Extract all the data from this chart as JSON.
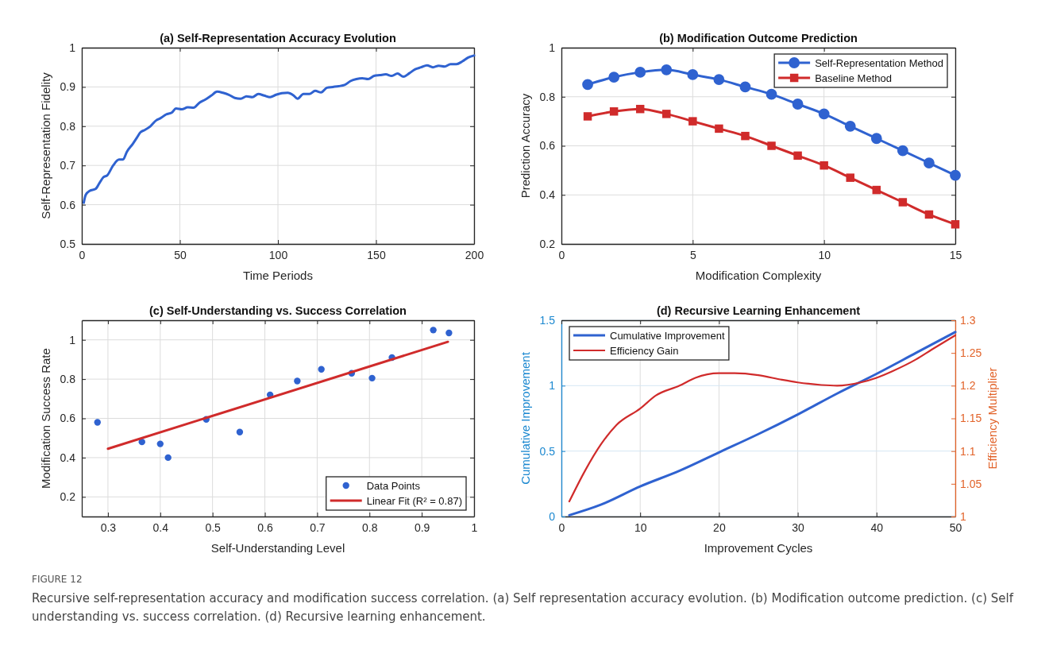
{
  "chart_data": [
    {
      "type": "line",
      "title": "(a) Self-Representation Accuracy Evolution",
      "xlabel": "Time Periods",
      "ylabel": "Self-Representation Fidelity",
      "xlim": [
        0,
        200
      ],
      "xticks": [
        0,
        50,
        100,
        150,
        200
      ],
      "ylim": [
        0.5,
        1
      ],
      "yticks": [
        0.5,
        0.6,
        0.7,
        0.8,
        0.9,
        1
      ],
      "grid": true,
      "legend": false,
      "x": [
        1,
        2,
        4,
        7,
        9,
        11,
        13,
        16,
        19,
        21,
        23,
        26,
        28,
        30,
        32,
        35,
        38,
        40,
        43,
        46,
        48,
        51,
        54,
        57,
        60,
        63,
        66,
        69,
        72,
        75,
        78,
        81,
        84,
        87,
        90,
        93,
        96,
        99,
        102,
        105,
        108,
        110,
        113,
        116,
        119,
        122,
        125,
        128,
        131,
        134,
        137,
        140,
        143,
        146,
        149,
        152,
        155,
        158,
        161,
        164,
        167,
        170,
        173,
        176,
        179,
        182,
        185,
        188,
        191,
        194,
        197,
        200
      ],
      "series": [
        {
          "color": "#2f62d0",
          "values": [
            0.605,
            0.625,
            0.635,
            0.64,
            0.655,
            0.67,
            0.675,
            0.7,
            0.715,
            0.715,
            0.735,
            0.755,
            0.77,
            0.785,
            0.79,
            0.8,
            0.815,
            0.82,
            0.83,
            0.835,
            0.845,
            0.843,
            0.848,
            0.847,
            0.86,
            0.868,
            0.878,
            0.888,
            0.885,
            0.88,
            0.872,
            0.87,
            0.876,
            0.874,
            0.882,
            0.878,
            0.874,
            0.88,
            0.884,
            0.885,
            0.878,
            0.87,
            0.882,
            0.882,
            0.89,
            0.886,
            0.898,
            0.9,
            0.902,
            0.905,
            0.915,
            0.92,
            0.922,
            0.92,
            0.928,
            0.93,
            0.932,
            0.928,
            0.934,
            0.926,
            0.935,
            0.945,
            0.95,
            0.955,
            0.95,
            0.954,
            0.952,
            0.958,
            0.958,
            0.965,
            0.975,
            0.98
          ]
        }
      ],
      "annotations": [
        "FIGURE 12",
        "Recursive self-representation accuracy and modification success correlation. (a) Self representation accuracy evolution. (b) Modification outcome prediction. (c) Self understanding vs. success correlation. (d) Recursive learning enhancement."
      ]
    },
    {
      "type": "line",
      "title": "(b) Modification Outcome Prediction",
      "xlabel": "Modification Complexity",
      "ylabel": "Prediction Accuracy",
      "xlim": [
        0,
        15
      ],
      "xticks": [
        0,
        5,
        10,
        15
      ],
      "ylim": [
        0.2,
        1
      ],
      "yticks": [
        0.2,
        0.4,
        0.6,
        0.8,
        1
      ],
      "grid": true,
      "legend": "top right",
      "x": [
        1,
        2,
        3,
        4,
        5,
        6,
        7,
        8,
        9,
        10,
        11,
        12,
        13,
        14,
        15
      ],
      "series": [
        {
          "name": "Self-Representation Method",
          "color": "#2f62d0",
          "marker": "circle",
          "values": [
            0.85,
            0.88,
            0.9,
            0.91,
            0.89,
            0.87,
            0.84,
            0.81,
            0.77,
            0.73,
            0.68,
            0.63,
            0.58,
            0.53,
            0.48
          ]
        },
        {
          "name": "Baseline Method",
          "color": "#d02b2b",
          "marker": "square",
          "values": [
            0.72,
            0.74,
            0.75,
            0.73,
            0.7,
            0.67,
            0.64,
            0.6,
            0.56,
            0.52,
            0.47,
            0.42,
            0.37,
            0.32,
            0.28
          ]
        }
      ]
    },
    {
      "type": "scatter",
      "title": "(c) Self-Understanding vs. Success Correlation",
      "xlabel": "Self-Understanding Level",
      "ylabel": "Modification Success Rate",
      "xlim": [
        0.25,
        1
      ],
      "xticks": [
        0.3,
        0.4,
        0.5,
        0.6,
        0.7,
        0.8,
        0.9,
        1
      ],
      "ylim": [
        0.1,
        1.1
      ],
      "yticks": [
        0.2,
        0.4,
        0.6,
        0.8,
        1
      ],
      "grid": true,
      "legend": "bottom right",
      "series": [
        {
          "name": "Data Points",
          "color": "#2f62d0",
          "x": [
            0.28,
            0.365,
            0.4,
            0.415,
            0.488,
            0.552,
            0.61,
            0.662,
            0.708,
            0.766,
            0.805,
            0.843,
            0.922,
            0.952
          ],
          "values": [
            0.58,
            0.48,
            0.47,
            0.4,
            0.595,
            0.53,
            0.72,
            0.79,
            0.85,
            0.83,
            0.805,
            0.91,
            1.05,
            1.035
          ]
        },
        {
          "name": "Linear Fit (R² = 0.87)",
          "type": "line",
          "color": "#d02b2b",
          "x": [
            0.3,
            0.95
          ],
          "values": [
            0.445,
            0.99
          ]
        }
      ]
    },
    {
      "type": "line",
      "title": "(d) Recursive Learning Enhancement",
      "xlabel": "Improvement Cycles",
      "ylabel": "Cumulative Improvement",
      "y2label": "Efficiency Multiplier",
      "xlim": [
        0,
        50
      ],
      "xticks": [
        0,
        10,
        20,
        30,
        40,
        50
      ],
      "ylim": [
        0,
        1.5
      ],
      "yticks": [
        0,
        0.5,
        1,
        1.5
      ],
      "y2lim": [
        1,
        1.3
      ],
      "y2ticks": [
        1,
        1.05,
        1.1,
        1.15,
        1.2,
        1.25,
        1.3
      ],
      "grid": true,
      "legend": "top left",
      "series": [
        {
          "name": "Cumulative Improvement",
          "color": "#2f62d0",
          "x": [
            1,
            5,
            10,
            15,
            20,
            25,
            30,
            35,
            40,
            45,
            50
          ],
          "values": [
            0.01,
            0.09,
            0.23,
            0.35,
            0.49,
            0.63,
            0.78,
            0.94,
            1.09,
            1.25,
            1.41
          ]
        },
        {
          "name": "Efficiency Gain",
          "color": "#d02b2b",
          "axis": "y2",
          "x": [
            1,
            3,
            5,
            7,
            10,
            12,
            15,
            17,
            20,
            22,
            25,
            28,
            30,
            33,
            35,
            38,
            40,
            42,
            45,
            47,
            50
          ],
          "values": [
            1.023,
            1.07,
            1.11,
            1.14,
            1.165,
            1.185,
            1.2,
            1.212,
            1.219,
            1.219,
            1.216,
            1.209,
            1.205,
            1.201,
            1.2,
            1.205,
            1.212,
            1.222,
            1.24,
            1.255,
            1.277
          ]
        }
      ]
    }
  ]
}
